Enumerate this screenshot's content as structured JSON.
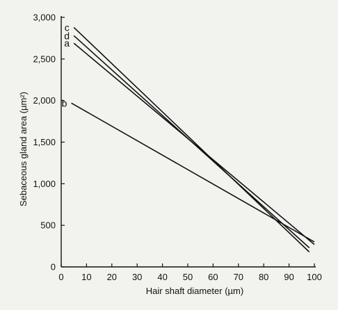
{
  "chart_data": {
    "type": "line",
    "xlabel": "Hair shaft diameter (µm)",
    "ylabel": "Sebaceous gland area (µm²)",
    "xlim": [
      0,
      100
    ],
    "ylim": [
      0,
      3000
    ],
    "x_ticks": [
      0,
      10,
      20,
      30,
      40,
      50,
      60,
      70,
      80,
      90,
      100
    ],
    "x_tick_labels": [
      "0",
      "10",
      "20",
      "30",
      "40",
      "50",
      "60",
      "70",
      "80",
      "90",
      "100"
    ],
    "y_ticks": [
      0,
      500,
      1000,
      1500,
      2000,
      2500,
      3000
    ],
    "y_tick_labels": [
      "0",
      "500",
      "1,000",
      "1,500",
      "2,000",
      "2,500",
      "3,000"
    ],
    "grid": false,
    "series": [
      {
        "name": "c",
        "x": [
          5,
          98
        ],
        "y": [
          2880,
          180
        ]
      },
      {
        "name": "d",
        "x": [
          5,
          98
        ],
        "y": [
          2780,
          230
        ]
      },
      {
        "name": "a",
        "x": [
          5,
          100
        ],
        "y": [
          2690,
          270
        ]
      },
      {
        "name": "b",
        "x": [
          4,
          100
        ],
        "y": [
          1970,
          300
        ]
      }
    ]
  }
}
